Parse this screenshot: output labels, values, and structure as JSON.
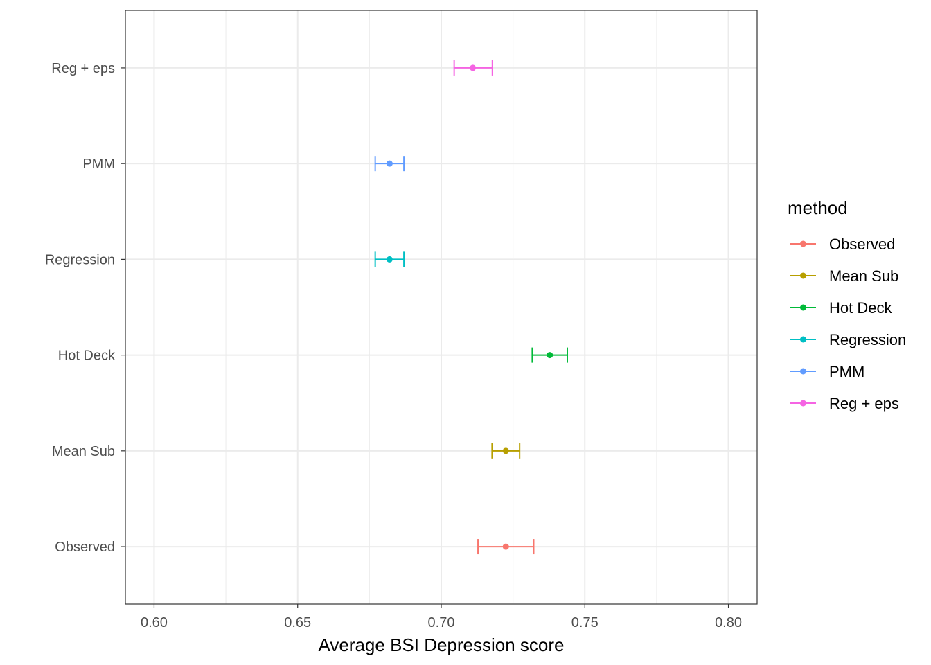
{
  "chart_data": {
    "type": "scatter",
    "subtype": "point-with-errorbars",
    "title": "",
    "xlabel": "Average BSI Depression score",
    "ylabel": "",
    "xlim": [
      0.59,
      0.81
    ],
    "x_ticks": [
      0.6,
      0.65,
      0.7,
      0.75,
      0.8
    ],
    "x_tick_labels": [
      "0.60",
      "0.65",
      "0.70",
      "0.75",
      "0.80"
    ],
    "categories": [
      "Observed",
      "Mean Sub",
      "Hot Deck",
      "Regression",
      "PMM",
      "Reg + eps"
    ],
    "points": [
      {
        "method": "Observed",
        "mean": 0.7225,
        "lower": 0.7128,
        "upper": 0.7322,
        "color": "#F8766D"
      },
      {
        "method": "Mean Sub",
        "mean": 0.7225,
        "lower": 0.7177,
        "upper": 0.7273,
        "color": "#B79F00"
      },
      {
        "method": "Hot Deck",
        "mean": 0.7378,
        "lower": 0.7317,
        "upper": 0.7439,
        "color": "#00BA38"
      },
      {
        "method": "Regression",
        "mean": 0.682,
        "lower": 0.677,
        "upper": 0.687,
        "color": "#00BFC4"
      },
      {
        "method": "PMM",
        "mean": 0.682,
        "lower": 0.677,
        "upper": 0.687,
        "color": "#619CFF"
      },
      {
        "method": "Reg + eps",
        "mean": 0.711,
        "lower": 0.7045,
        "upper": 0.7178,
        "color": "#F564E3"
      }
    ],
    "legend": {
      "title": "method",
      "position": "right",
      "entries": [
        "Observed",
        "Mean Sub",
        "Hot Deck",
        "Regression",
        "PMM",
        "Reg + eps"
      ]
    },
    "grid": true,
    "theme": "bw"
  }
}
